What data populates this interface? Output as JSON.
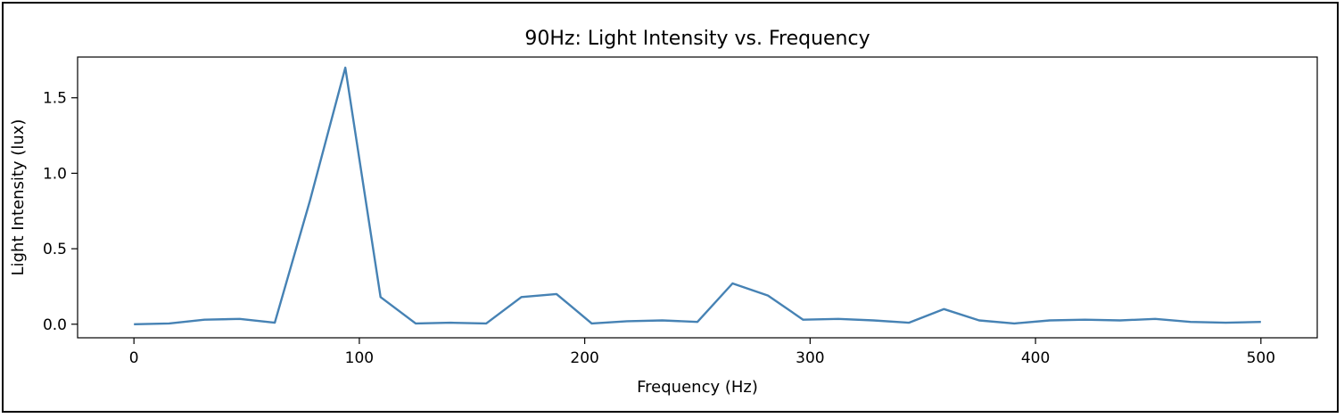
{
  "chart_data": {
    "type": "line",
    "title": "90Hz: Light Intensity vs. Frequency",
    "xlabel": "Frequency (Hz)",
    "ylabel": "Light Intensity (lux)",
    "xlim": [
      -25,
      525
    ],
    "ylim": [
      -0.09,
      1.77
    ],
    "xticks": [
      0,
      100,
      200,
      300,
      400,
      500
    ],
    "xtick_labels": [
      "0",
      "100",
      "200",
      "300",
      "400",
      "500"
    ],
    "yticks": [
      0.0,
      0.5,
      1.0,
      1.5
    ],
    "ytick_labels": [
      "0.0",
      "0.5",
      "1.0",
      "1.5"
    ],
    "grid": false,
    "line_color": "#4682b4",
    "series": [
      {
        "x": [
          0,
          15.6,
          31.3,
          46.9,
          62.5,
          78.1,
          93.8,
          109.4,
          125,
          140.6,
          156.3,
          171.9,
          187.5,
          203.1,
          218.8,
          234.4,
          250,
          265.6,
          281.3,
          296.9,
          312.5,
          328.1,
          343.8,
          359.4,
          375,
          390.6,
          406.3,
          421.9,
          437.5,
          453.1,
          468.8,
          484.4,
          500
        ],
        "y": [
          0.0,
          0.005,
          0.03,
          0.035,
          0.01,
          0.82,
          1.7,
          0.18,
          0.005,
          0.01,
          0.005,
          0.18,
          0.2,
          0.005,
          0.02,
          0.025,
          0.015,
          0.27,
          0.19,
          0.03,
          0.035,
          0.025,
          0.01,
          0.1,
          0.025,
          0.005,
          0.025,
          0.03,
          0.025,
          0.035,
          0.015,
          0.01,
          0.015
        ]
      }
    ]
  }
}
